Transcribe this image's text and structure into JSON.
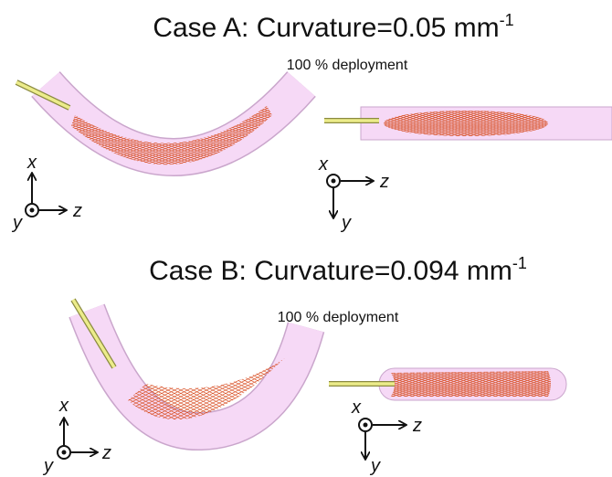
{
  "case_a": {
    "title": "Case A: Curvature=0.05 mm",
    "title_superscript": "-1",
    "caption": "100 % deployment",
    "triads": [
      {
        "x": "x",
        "y": "y",
        "z": "z"
      },
      {
        "x": "x",
        "y": "y",
        "z": "z"
      }
    ]
  },
  "case_b": {
    "title": "Case B: Curvature=0.094 mm",
    "title_superscript": "-1",
    "caption": "100 % deployment",
    "triads": [
      {
        "x": "x",
        "y": "y",
        "z": "z"
      },
      {
        "x": "x",
        "y": "y",
        "z": "z"
      }
    ]
  }
}
